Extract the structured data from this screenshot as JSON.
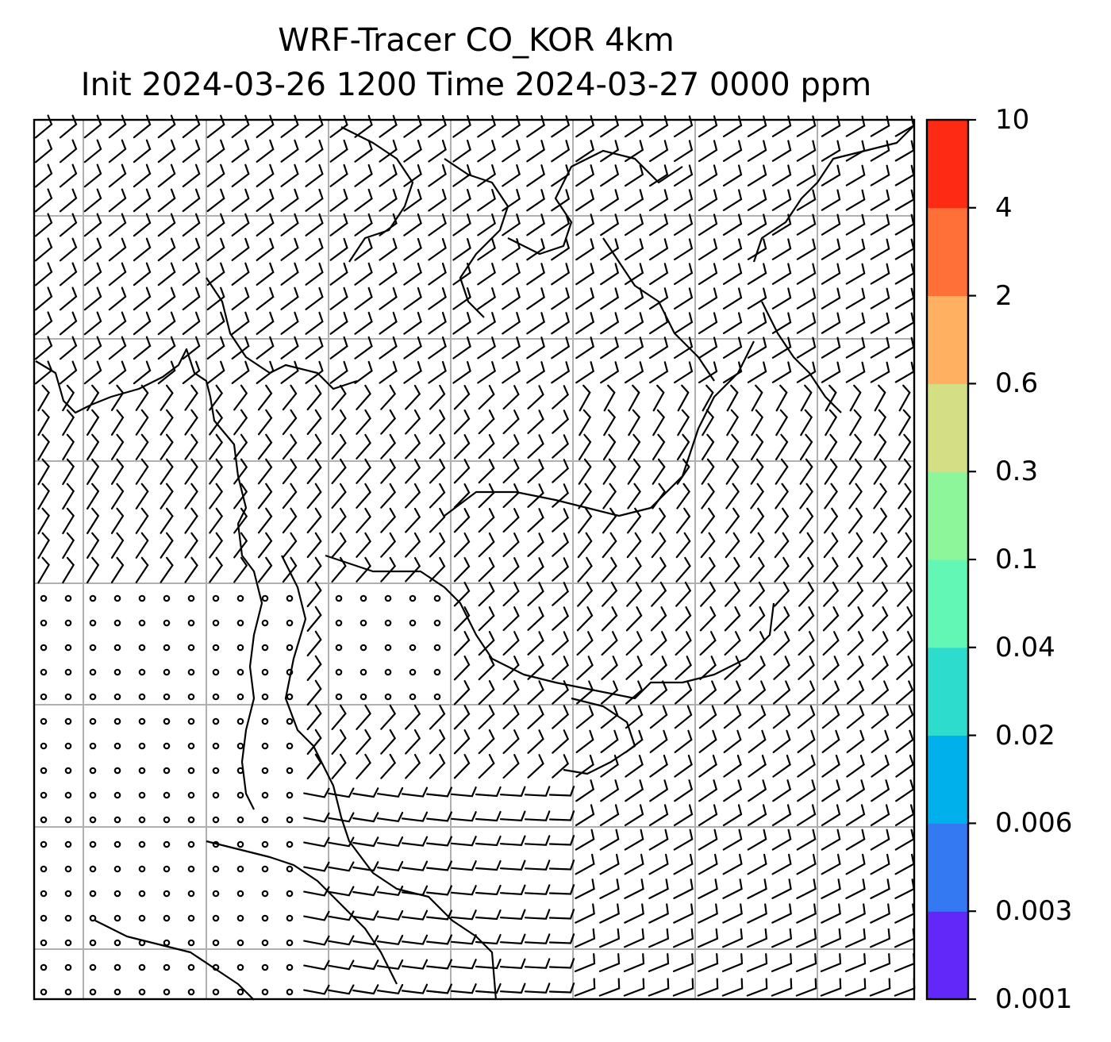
{
  "title": {
    "line1": "WRF-Tracer CO_KOR 4km",
    "line2": "Init 2024-03-26 1200 Time 2024-03-27 0000 ppm"
  },
  "colorbar": {
    "levels": [
      "0.001",
      "0.003",
      "0.006",
      "0.02",
      "0.04",
      "0.1",
      "0.3",
      "0.6",
      "2",
      "4",
      "10"
    ],
    "colors": [
      "#6228FA",
      "#3579F2",
      "#00B0EA",
      "#2EDCCE",
      "#63F7B5",
      "#8DF59A",
      "#D3DE85",
      "#FFB061",
      "#FF7038",
      "#FF2A14"
    ]
  },
  "map": {
    "background": "#ffffff",
    "gridline_color": "#b0b0b0",
    "barb_color": "#000000"
  }
}
